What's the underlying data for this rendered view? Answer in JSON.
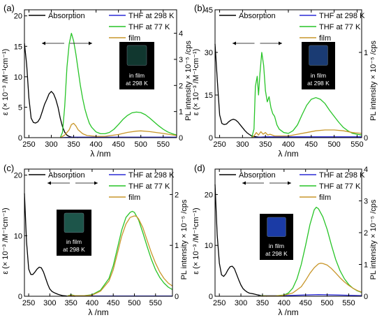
{
  "legend": {
    "absorption": "Absorption",
    "thf298": "THF at 298 K",
    "thf77": "THF at 77 K",
    "film": "film"
  },
  "inset": {
    "line1": "in film",
    "line2": "at 298 K"
  },
  "colors": {
    "absorption": "#000000",
    "thf298": "#2b2bd6",
    "thf77": "#27c427",
    "film": "#c8962a",
    "inset_a": "#123a32",
    "inset_b": "#1c3f7a",
    "inset_c": "#1f5a4e",
    "inset_d": "#1d3fae"
  },
  "chart_data": [
    {
      "panel": "(a)",
      "type": "line",
      "xlabel": "λ /nm",
      "ylabel_left": "ε (× 10⁻³ /M⁻¹cm⁻¹)",
      "ylabel_right": "PL intensity × 10⁻⁵ /cps",
      "xlim": [
        240,
        580
      ],
      "ylim_left": [
        0,
        21
      ],
      "ylim_right": [
        0,
        4.9
      ],
      "xticks": [
        250,
        300,
        350,
        400,
        450,
        500,
        550
      ],
      "yticks_left": [
        0,
        5,
        10,
        15,
        20
      ],
      "yticks_right": [
        0,
        1,
        2,
        3,
        4
      ],
      "arrow": "both",
      "series": [
        {
          "key": "absorption",
          "name": "Absorption",
          "axis": "left",
          "x": [
            240,
            245,
            250,
            255,
            260,
            265,
            270,
            275,
            280,
            285,
            290,
            295,
            300,
            305,
            310,
            315,
            320,
            325,
            330,
            335,
            340,
            345,
            350,
            360
          ],
          "y": [
            15.5,
            12,
            6.5,
            3.2,
            2.5,
            2.4,
            2.6,
            3.2,
            4.3,
            5.5,
            6.3,
            7.2,
            7.6,
            7.2,
            6.3,
            5,
            3.2,
            1.8,
            0.9,
            0.4,
            0.2,
            0.1,
            0.05,
            0
          ]
        },
        {
          "key": "thf298",
          "name": "THF at 298 K",
          "axis": "right",
          "x": [
            320,
            350,
            400,
            450,
            500,
            550,
            580
          ],
          "y": [
            0,
            0.02,
            0.02,
            0.02,
            0.02,
            0.02,
            0.02
          ]
        },
        {
          "key": "thf77",
          "name": "THF at 77 K",
          "axis": "right",
          "x": [
            320,
            325,
            330,
            335,
            340,
            345,
            350,
            355,
            360,
            365,
            370,
            375,
            380,
            385,
            390,
            400,
            410,
            420,
            430,
            440,
            450,
            460,
            470,
            480,
            490,
            500,
            510,
            520,
            530,
            540,
            550,
            560,
            570,
            580
          ],
          "y": [
            0,
            0.2,
            1.2,
            2.7,
            3.6,
            4.0,
            3.7,
            3.2,
            2.6,
            2.0,
            1.5,
            1.1,
            0.8,
            0.55,
            0.4,
            0.22,
            0.15,
            0.15,
            0.2,
            0.32,
            0.5,
            0.7,
            0.85,
            0.95,
            0.98,
            0.96,
            0.88,
            0.75,
            0.6,
            0.45,
            0.32,
            0.22,
            0.15,
            0.1
          ]
        },
        {
          "key": "film",
          "name": "film",
          "axis": "right",
          "x": [
            320,
            330,
            340,
            345,
            350,
            355,
            360,
            370,
            380,
            400,
            420,
            450,
            470,
            490,
            500,
            520,
            550,
            580
          ],
          "y": [
            0,
            0.1,
            0.3,
            0.5,
            0.55,
            0.45,
            0.3,
            0.15,
            0.08,
            0.05,
            0.05,
            0.12,
            0.2,
            0.25,
            0.26,
            0.23,
            0.16,
            0.08
          ]
        }
      ]
    },
    {
      "panel": "(b)",
      "type": "line",
      "xlabel": "λ /nm",
      "ylabel_left": "ε (× 10⁻³ /M⁻¹cm⁻¹)",
      "ylabel_right": "PL intensity × 10⁻⁵ /cps",
      "xlim": [
        240,
        560
      ],
      "ylim_left": [
        0,
        45
      ],
      "ylim_right": [
        0,
        1.5
      ],
      "xticks": [
        250,
        300,
        350,
        400,
        450,
        500,
        550
      ],
      "yticks_left": [
        0,
        15,
        30,
        45
      ],
      "yticks_right": [
        0,
        1
      ],
      "arrow": "both",
      "series": [
        {
          "key": "absorption",
          "name": "Absorption",
          "axis": "left",
          "x": [
            240,
            245,
            250,
            255,
            260,
            265,
            270,
            275,
            280,
            285,
            290,
            295,
            300,
            305,
            310,
            315,
            320,
            330,
            340,
            350
          ],
          "y": [
            33,
            20,
            8,
            5,
            4.6,
            4.8,
            5.6,
            6.2,
            6.5,
            6.2,
            5.5,
            4.5,
            3.5,
            2.5,
            1.7,
            1.1,
            0.6,
            0.3,
            0.1,
            0
          ]
        },
        {
          "key": "thf298",
          "name": "THF at 298 K",
          "axis": "right",
          "x": [
            320,
            350,
            400,
            450,
            500,
            560
          ],
          "y": [
            0,
            0.01,
            0.01,
            0.01,
            0.01,
            0.01
          ]
        },
        {
          "key": "thf77",
          "name": "THF at 77 K",
          "axis": "right",
          "x": [
            320,
            325,
            328,
            332,
            335,
            338,
            342,
            346,
            350,
            354,
            358,
            362,
            366,
            370,
            375,
            380,
            390,
            400,
            410,
            420,
            430,
            440,
            450,
            460,
            470,
            480,
            490,
            500,
            510,
            520,
            530,
            540,
            550,
            560
          ],
          "y": [
            0,
            0.1,
            0.6,
            0.72,
            0.5,
            0.75,
            1.0,
            0.85,
            0.55,
            0.42,
            0.48,
            0.35,
            0.28,
            0.25,
            0.15,
            0.1,
            0.06,
            0.05,
            0.08,
            0.15,
            0.27,
            0.38,
            0.45,
            0.47,
            0.45,
            0.4,
            0.32,
            0.25,
            0.18,
            0.12,
            0.08,
            0.05,
            0.04,
            0.03
          ]
        },
        {
          "key": "film",
          "name": "film",
          "axis": "right",
          "x": [
            320,
            325,
            330,
            335,
            340,
            345,
            350,
            355,
            360,
            370,
            380,
            400,
            420,
            440,
            460,
            480,
            500,
            520,
            540,
            560
          ],
          "y": [
            0,
            0.02,
            0.06,
            0.03,
            0.07,
            0.04,
            0.06,
            0.03,
            0.04,
            0.02,
            0.02,
            0.02,
            0.04,
            0.06,
            0.08,
            0.09,
            0.09,
            0.08,
            0.06,
            0.05
          ]
        }
      ]
    },
    {
      "panel": "(c)",
      "type": "line",
      "xlabel": "λ /nm",
      "ylabel_left": "ε (× 10⁻³ /M⁻¹cm⁻¹)",
      "ylabel_right": "PL intensity × 10⁻⁵ /cps",
      "xlim": [
        240,
        590
      ],
      "ylim_left": [
        0,
        21
      ],
      "ylim_right": [
        0,
        2.5
      ],
      "xticks": [
        250,
        300,
        350,
        400,
        450,
        500,
        550
      ],
      "yticks_left": [
        0,
        10,
        20
      ],
      "yticks_right": [
        0,
        1,
        2
      ],
      "arrow": "both",
      "series": [
        {
          "key": "absorption",
          "name": "Absorption",
          "axis": "left",
          "x": [
            240,
            245,
            250,
            255,
            260,
            265,
            270,
            275,
            280,
            285,
            290,
            295,
            300,
            305,
            310,
            315,
            320,
            325,
            330,
            340,
            350,
            360
          ],
          "y": [
            17,
            9,
            4.5,
            3.6,
            3.6,
            4,
            4.5,
            4.8,
            4.7,
            4,
            3,
            2,
            1.2,
            0.8,
            0.6,
            0.45,
            0.3,
            0.2,
            0.12,
            0.05,
            0.02,
            0
          ]
        },
        {
          "key": "thf298",
          "name": "THF at 298 K",
          "axis": "right",
          "x": [
            340,
            400,
            450,
            500,
            550,
            590
          ],
          "y": [
            0.005,
            0.005,
            0.005,
            0.005,
            0.005,
            0.005
          ]
        },
        {
          "key": "thf77",
          "name": "THF at 77 K",
          "axis": "right",
          "x": [
            340,
            350,
            360,
            380,
            400,
            420,
            440,
            450,
            460,
            470,
            480,
            490,
            495,
            500,
            510,
            520,
            530,
            540,
            550,
            560,
            570,
            580,
            590
          ],
          "y": [
            0,
            0.03,
            0.01,
            0.01,
            0.03,
            0.12,
            0.35,
            0.6,
            0.95,
            1.3,
            1.55,
            1.65,
            1.67,
            1.65,
            1.5,
            1.25,
            0.98,
            0.73,
            0.52,
            0.37,
            0.26,
            0.18,
            0.13
          ]
        },
        {
          "key": "film",
          "name": "film",
          "axis": "right",
          "x": [
            340,
            350,
            360,
            380,
            400,
            420,
            440,
            450,
            460,
            470,
            480,
            490,
            500,
            505,
            510,
            520,
            530,
            540,
            550,
            560,
            570,
            580,
            590
          ],
          "y": [
            0,
            0.02,
            0.01,
            0.01,
            0.02,
            0.1,
            0.3,
            0.52,
            0.85,
            1.18,
            1.42,
            1.55,
            1.58,
            1.57,
            1.52,
            1.35,
            1.1,
            0.86,
            0.65,
            0.48,
            0.35,
            0.26,
            0.2
          ]
        }
      ]
    },
    {
      "panel": "(d)",
      "type": "line",
      "xlabel": "λ /nm",
      "ylabel_left": "ε (× 10⁻³ /M⁻¹cm⁻¹)",
      "ylabel_right": "PL intensity × 10⁻⁵ /cps",
      "xlim": [
        240,
        580
      ],
      "ylim_left": [
        0,
        25
      ],
      "ylim_right": [
        0,
        4.0
      ],
      "xticks": [
        250,
        300,
        350,
        400,
        450,
        500,
        550
      ],
      "yticks_left": [
        0,
        10,
        20
      ],
      "yticks_right": [
        0,
        1,
        2,
        3,
        4
      ],
      "arrow": "both",
      "series": [
        {
          "key": "absorption",
          "name": "Absorption",
          "axis": "left",
          "x": [
            240,
            245,
            250,
            255,
            260,
            265,
            270,
            275,
            280,
            285,
            290,
            295,
            300,
            305,
            310,
            315,
            320,
            330,
            340,
            350,
            360
          ],
          "y": [
            22,
            12,
            6.5,
            4.2,
            3.9,
            4.4,
            5.2,
            5.8,
            5.9,
            5.4,
            4.3,
            3.2,
            2.2,
            1.5,
            1.1,
            0.8,
            0.6,
            0.45,
            0.25,
            0.08,
            0
          ]
        },
        {
          "key": "thf298",
          "name": "THF at 298 K",
          "axis": "right",
          "x": [
            340,
            350,
            400,
            450,
            480,
            520,
            580
          ],
          "y": [
            0.01,
            0.02,
            0.02,
            0.04,
            0.05,
            0.04,
            0.02
          ]
        },
        {
          "key": "thf77",
          "name": "THF at 77 K",
          "axis": "right",
          "x": [
            340,
            350,
            360,
            380,
            400,
            410,
            420,
            430,
            440,
            450,
            460,
            470,
            475,
            480,
            490,
            500,
            510,
            520,
            530,
            540,
            550,
            560,
            570,
            580
          ],
          "y": [
            0,
            0.02,
            0.01,
            0.01,
            0.04,
            0.1,
            0.25,
            0.55,
            1.0,
            1.6,
            2.25,
            2.72,
            2.8,
            2.75,
            2.5,
            2.1,
            1.6,
            1.15,
            0.8,
            0.55,
            0.37,
            0.25,
            0.17,
            0.12
          ]
        },
        {
          "key": "film",
          "name": "film",
          "axis": "right",
          "x": [
            340,
            350,
            360,
            380,
            400,
            420,
            440,
            450,
            460,
            470,
            480,
            485,
            490,
            500,
            510,
            520,
            530,
            540,
            550,
            560,
            570,
            580
          ],
          "y": [
            0,
            0.01,
            0.01,
            0.01,
            0.03,
            0.1,
            0.3,
            0.5,
            0.72,
            0.9,
            1.02,
            1.04,
            1.03,
            0.98,
            0.87,
            0.73,
            0.58,
            0.45,
            0.34,
            0.25,
            0.18,
            0.13
          ]
        }
      ]
    }
  ]
}
